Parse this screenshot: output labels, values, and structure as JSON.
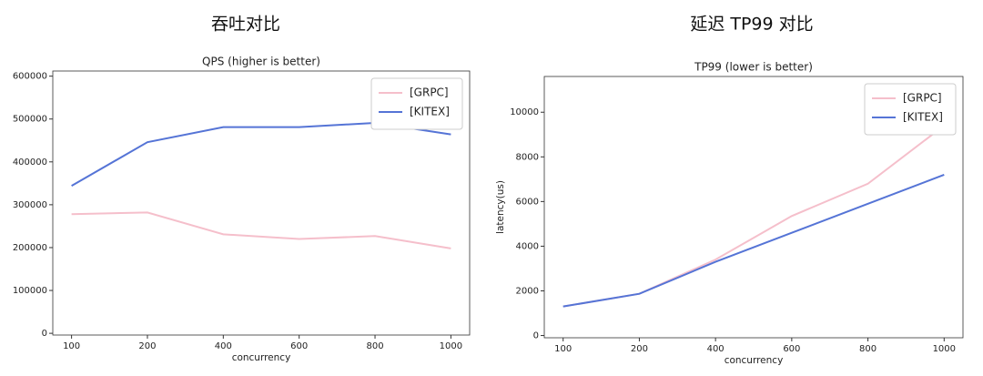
{
  "headings": [
    "吞吐对比",
    "延迟 TP99 对比"
  ],
  "chart_data": [
    {
      "type": "line",
      "title": "QPS (higher is better)",
      "x_label": "concurrency",
      "categories": [
        "100",
        "200",
        "400",
        "600",
        "800",
        "1000"
      ],
      "series": [
        {
          "name": "[GRPC]",
          "color": "#f5bfcb",
          "values": [
            278000,
            282000,
            231000,
            220000,
            227000,
            198000
          ]
        },
        {
          "name": "[KITEX]",
          "color": "#5574d6",
          "values": [
            344000,
            446000,
            481000,
            481000,
            491000,
            464000
          ]
        }
      ],
      "ylim": [
        -4000,
        612000
      ],
      "yticks": [
        0,
        100000,
        200000,
        300000,
        400000,
        500000,
        600000
      ],
      "legend": "upper right"
    },
    {
      "type": "line",
      "title": "TP99 (lower is better)",
      "x_label": "concurrency",
      "y_label": "latency(us)",
      "categories": [
        "100",
        "200",
        "400",
        "600",
        "800",
        "1000"
      ],
      "series": [
        {
          "name": "[GRPC]",
          "color": "#f5bfcb",
          "values": [
            1300,
            1870,
            3400,
            5350,
            6800,
            9400
          ]
        },
        {
          "name": "[KITEX]",
          "color": "#5574d6",
          "values": [
            1300,
            1870,
            3300,
            4600,
            5900,
            7200
          ]
        }
      ],
      "ylim": [
        -100,
        11600
      ],
      "yticks": [
        0,
        2000,
        4000,
        6000,
        8000,
        10000
      ],
      "legend": "upper right"
    }
  ]
}
